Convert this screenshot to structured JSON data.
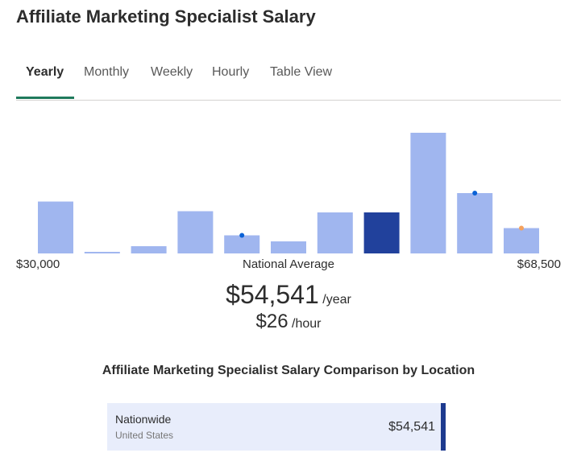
{
  "page": {
    "title": "Affiliate Marketing Specialist Salary"
  },
  "tabs": [
    {
      "label": "Yearly",
      "active": true
    },
    {
      "label": "Monthly",
      "active": false
    },
    {
      "label": "Weekly",
      "active": false
    },
    {
      "label": "Hourly",
      "active": false
    },
    {
      "label": "Table View",
      "active": false
    }
  ],
  "chart_data": {
    "type": "bar",
    "title": "",
    "xlabel": "",
    "ylabel": "",
    "x_range_labels": {
      "min": "$30,000",
      "center": "National Average",
      "max": "$68,500"
    },
    "values": [
      0.43,
      0.01,
      0.06,
      0.35,
      0.15,
      0.1,
      0.34,
      0.34,
      1.0,
      0.5,
      0.21
    ],
    "highlight_index": 7,
    "markers": [
      {
        "bar_index": 4,
        "color": "#0b62d6"
      },
      {
        "bar_index": 9,
        "color": "#0b62d6"
      },
      {
        "bar_index": 10,
        "color": "#f5a25d"
      }
    ],
    "colors": {
      "bar": "#a0b6ef",
      "highlight": "#21419c"
    },
    "grid": false
  },
  "average": {
    "yearly": "$54,541",
    "yearly_unit": "/year",
    "hourly": "$26",
    "hourly_unit": "/hour"
  },
  "comparison": {
    "title": "Affiliate Marketing Specialist Salary Comparison by Location",
    "rows": [
      {
        "name": "Nationwide",
        "sub": "United States",
        "salary": "$54,541"
      }
    ]
  }
}
